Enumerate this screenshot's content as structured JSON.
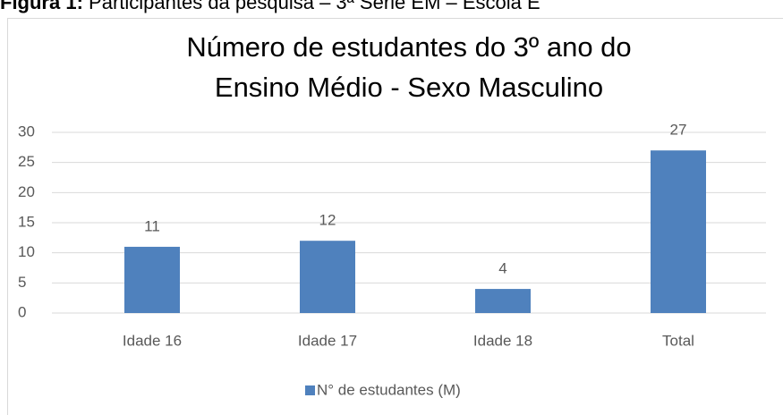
{
  "caption_label": "Figura 1:",
  "caption": "Participantes da pesquisa – 3ª Série EM – Escola E",
  "chart_data": {
    "type": "bar",
    "title": [
      "Número de estudantes do 3º ano do",
      "Ensino Médio - Sexo Masculino"
    ],
    "categories": [
      "Idade 16",
      "Idade 17",
      "Idade 18",
      "Total"
    ],
    "series": [
      {
        "name": "N° de estudantes (M)",
        "color": "#4f81bd",
        "values": [
          11,
          12,
          4,
          27
        ]
      }
    ],
    "ylim": [
      0,
      30
    ],
    "yticks": [
      0,
      5,
      10,
      15,
      20,
      25,
      30
    ],
    "grid": true,
    "legend": "bottom"
  }
}
